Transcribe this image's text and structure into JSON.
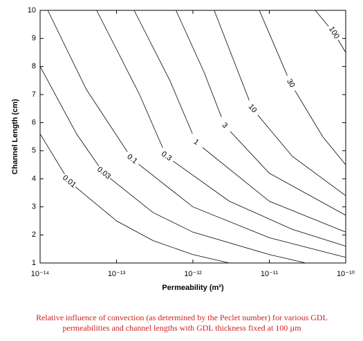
{
  "chart_data": {
    "type": "contour",
    "xlabel": "Permeability (m²)",
    "ylabel": "Channel Length (cm)",
    "xscale": "log",
    "xlim": [
      1e-14,
      1e-10
    ],
    "xticks": [
      {
        "value": 1e-14,
        "label": "10⁻¹⁴"
      },
      {
        "value": 1e-13,
        "label": "10⁻¹³"
      },
      {
        "value": 1e-12,
        "label": "10⁻¹²"
      },
      {
        "value": 1e-11,
        "label": "10⁻¹¹"
      },
      {
        "value": 1e-10,
        "label": "10⁻¹⁰"
      }
    ],
    "ylim": [
      1,
      10
    ],
    "yticks": [
      1,
      2,
      3,
      4,
      5,
      6,
      7,
      8,
      9,
      10
    ],
    "color": "#000000",
    "series": [
      {
        "level": 0.01,
        "x": [
          1e-14,
          2.4e-14,
          1e-13,
          3e-13,
          1e-12,
          3e-12
        ],
        "y": [
          5.6,
          3.9,
          2.5,
          1.8,
          1.3,
          1.0
        ]
      },
      {
        "level": 0.03,
        "x": [
          1e-14,
          3e-14,
          6.8e-14,
          3e-13,
          1e-12,
          1e-11,
          3e-11
        ],
        "y": [
          8,
          5.6,
          4.2,
          2.8,
          2.1,
          1.3,
          1.0
        ]
      },
      {
        "level": 0.1,
        "x": [
          1.26e-14,
          4e-14,
          1.6e-13,
          1e-12,
          1e-11,
          1e-10
        ],
        "y": [
          10,
          7.2,
          4.7,
          3,
          1.9,
          1.2
        ]
      },
      {
        "level": 0.3,
        "x": [
          5.5e-14,
          2e-13,
          4.5e-13,
          3e-12,
          2e-11,
          1e-10
        ],
        "y": [
          10,
          7,
          4.8,
          3.2,
          2.2,
          1.6
        ]
      },
      {
        "level": 1,
        "x": [
          1.7e-13,
          5e-13,
          1.1e-12,
          1e-11,
          1e-10
        ],
        "y": [
          10,
          7.5,
          5.3,
          3.2,
          2.1
        ]
      },
      {
        "level": 3,
        "x": [
          6e-13,
          1.4e-12,
          2.6e-12,
          1e-11,
          1e-10
        ],
        "y": [
          10,
          7.8,
          5.9,
          4.2,
          2.7
        ]
      },
      {
        "level": 10,
        "x": [
          1.9e-12,
          6e-12,
          2e-11,
          1e-10
        ],
        "y": [
          10,
          6.5,
          4.8,
          3.4
        ]
      },
      {
        "level": 30,
        "x": [
          7.4e-12,
          1.9e-11,
          5e-11,
          1e-10
        ],
        "y": [
          10,
          7.4,
          5.5,
          4.5
        ]
      },
      {
        "level": 100,
        "x": [
          4e-11,
          7e-11,
          1e-10
        ],
        "y": [
          10,
          9.2,
          8.5
        ]
      }
    ]
  },
  "caption": [
    "Relative influence of convection (as determined by the Peclet number) for various GDL",
    "permeabilities and channel lengths with GDL thickness fixed at 100 µm"
  ]
}
